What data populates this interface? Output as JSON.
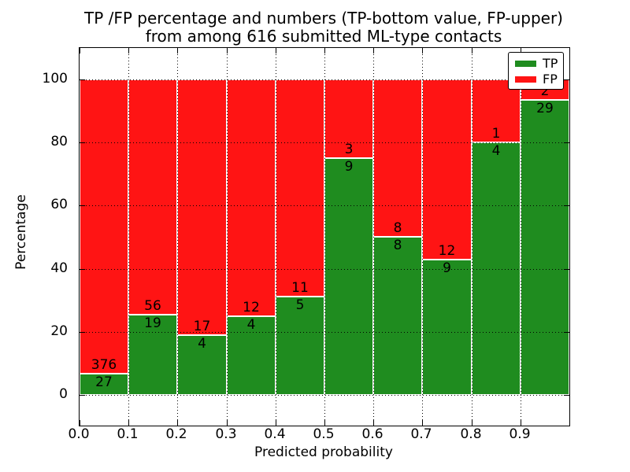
{
  "figure": {
    "title_line1": "TP /FP percentage and numbers (TP-bottom value, FP-upper)",
    "title_line2": "from among 616 submitted ML-type contacts"
  },
  "axes": {
    "xlabel": "Predicted probability",
    "ylabel": "Percentage",
    "xtick_labels": [
      "0.0",
      "0.1",
      "0.2",
      "0.3",
      "0.4",
      "0.5",
      "0.6",
      "0.7",
      "0.8",
      "0.9"
    ],
    "yticks": [
      0,
      20,
      40,
      60,
      80,
      100
    ],
    "ytick_labels": [
      "0",
      "20",
      "40",
      "60",
      "80",
      "100"
    ],
    "xlim": [
      0.0,
      1.0
    ],
    "ylim": [
      -10,
      110
    ],
    "grid_style": "dotted"
  },
  "legend": {
    "position": "upper right",
    "items": [
      {
        "label": "TP",
        "color": "#1f8c1f"
      },
      {
        "label": "FP",
        "color": "#ff1414"
      }
    ]
  },
  "chart_data": {
    "type": "bar",
    "stacked": true,
    "normalized_to_percent": true,
    "title": "TP /FP percentage and numbers (TP-bottom value, FP-upper) from among 616 submitted ML-type contacts",
    "xlabel": "Predicted probability",
    "ylabel": "Percentage",
    "total_contacts": 616,
    "bin_width": 0.1,
    "bin_starts": [
      0.0,
      0.1,
      0.2,
      0.3,
      0.4,
      0.5,
      0.6,
      0.7,
      0.8,
      0.9
    ],
    "categories": [
      "0.0-0.1",
      "0.1-0.2",
      "0.2-0.3",
      "0.3-0.4",
      "0.4-0.5",
      "0.5-0.6",
      "0.6-0.7",
      "0.7-0.8",
      "0.8-0.9",
      "0.9-1.0"
    ],
    "series": [
      {
        "name": "TP",
        "color": "#1f8c1f",
        "counts": [
          27,
          19,
          4,
          4,
          5,
          9,
          8,
          9,
          4,
          29
        ]
      },
      {
        "name": "FP",
        "color": "#ff1414",
        "counts": [
          376,
          56,
          17,
          12,
          11,
          3,
          8,
          12,
          1,
          2
        ]
      }
    ],
    "tp_percent_of_bin": [
      6.7,
      25.33,
      19.05,
      25.0,
      31.25,
      75.0,
      50.0,
      42.86,
      80.0,
      93.55
    ],
    "ylim": [
      -10,
      110
    ],
    "xlim": [
      0.0,
      1.0
    ],
    "legend_entries": [
      "TP",
      "FP"
    ],
    "legend_position": "upper right",
    "grid": true
  }
}
